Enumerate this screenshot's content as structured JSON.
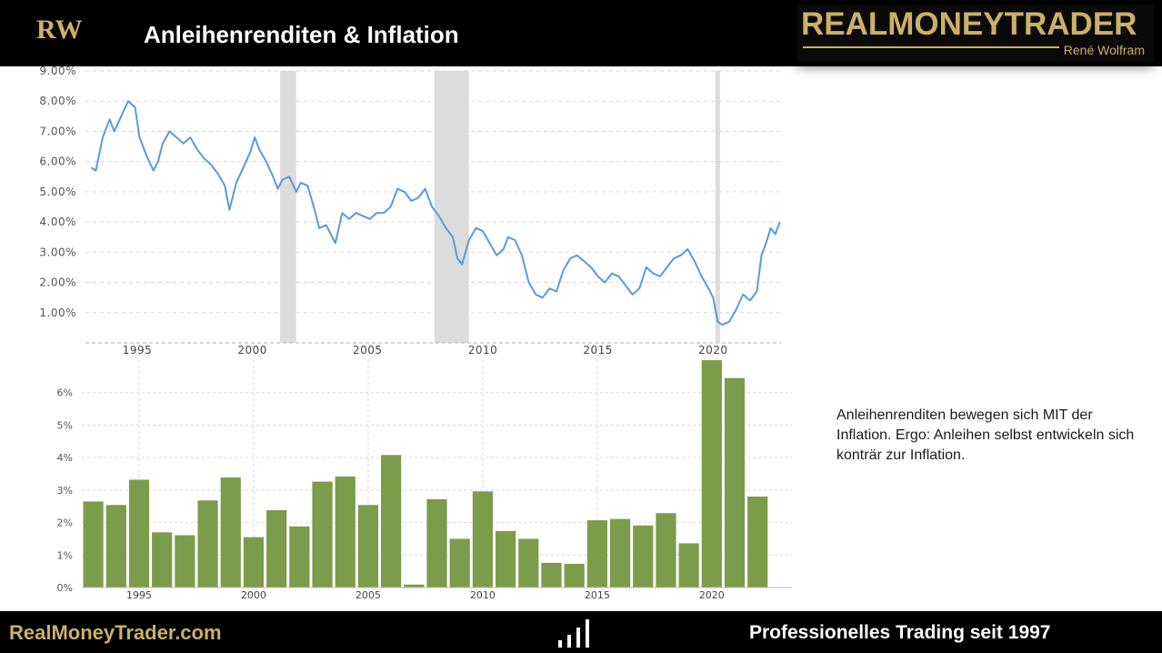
{
  "header": {
    "title": "Anleihenrenditen & Inflation",
    "logo_letters": "RW",
    "brand_name": "REALMONEYTRADER",
    "brand_sub": "René Wolfram",
    "colors": {
      "background": "#000000",
      "gold": "#cdb067",
      "title": "#ffffff"
    }
  },
  "note": {
    "text": "Anleihenrenditen bewegen sich MIT der Inflation. Ergo: Anleihen selbst entwickeln sich konträr zur Inflation."
  },
  "footer": {
    "site": "RealMoneyTrader.com",
    "tagline": "Professionelles Trading seit 1997",
    "icon": "bar-chart-icon"
  },
  "chart_data": [
    {
      "type": "line",
      "series_color": "#5b9bd5",
      "ylim": [
        0,
        9
      ],
      "xlim": [
        1993.0,
        2022.9
      ],
      "y_ticks": [
        "9.00%",
        "8.00%",
        "7.00%",
        "6.00%",
        "5.00%",
        "4.00%",
        "3.00%",
        "2.00%",
        "1.00%"
      ],
      "y_tick_values": [
        9,
        8,
        7,
        6,
        5,
        4,
        3,
        2,
        1
      ],
      "x_ticks": [
        "1995",
        "2000",
        "2005",
        "2010",
        "2015",
        "2020"
      ],
      "x_tick_values": [
        1995,
        2000,
        2005,
        2010,
        2015,
        2020
      ],
      "recession_bands": [
        [
          2001.2,
          2001.9
        ],
        [
          2007.9,
          2009.4
        ],
        [
          2020.1,
          2020.3
        ]
      ],
      "grid": true,
      "series": [
        {
          "x": [
            1993.0,
            1993.2,
            1993.5,
            1993.8,
            1994.0,
            1994.3,
            1994.6,
            1994.9,
            1995.1,
            1995.4,
            1995.7,
            1995.9,
            1996.1,
            1996.4,
            1996.7,
            1997.0,
            1997.3,
            1997.6,
            1997.9,
            1998.2,
            1998.5,
            1998.8,
            1999.0,
            1999.3,
            1999.6,
            1999.9,
            2000.1,
            2000.3,
            2000.6,
            2000.9,
            2001.1,
            2001.3,
            2001.6,
            2001.9,
            2002.1,
            2002.4,
            2002.7,
            2002.9,
            2003.2,
            2003.4,
            2003.6,
            2003.9,
            2004.2,
            2004.5,
            2004.8,
            2005.1,
            2005.4,
            2005.7,
            2006.0,
            2006.3,
            2006.6,
            2006.9,
            2007.2,
            2007.5,
            2007.8,
            2008.1,
            2008.4,
            2008.7,
            2008.9,
            2009.1,
            2009.4,
            2009.7,
            2010.0,
            2010.3,
            2010.6,
            2010.9,
            2011.1,
            2011.4,
            2011.7,
            2012.0,
            2012.3,
            2012.6,
            2012.9,
            2013.2,
            2013.5,
            2013.8,
            2014.1,
            2014.4,
            2014.7,
            2015.0,
            2015.3,
            2015.6,
            2015.9,
            2016.2,
            2016.5,
            2016.8,
            2017.1,
            2017.4,
            2017.7,
            2018.0,
            2018.3,
            2018.6,
            2018.9,
            2019.2,
            2019.5,
            2019.8,
            2020.0,
            2020.2,
            2020.4,
            2020.7,
            2021.0,
            2021.3,
            2021.6,
            2021.9,
            2022.1,
            2022.3,
            2022.5,
            2022.7,
            2022.9
          ],
          "y": [
            5.8,
            5.7,
            6.8,
            7.4,
            7.0,
            7.5,
            8.0,
            7.8,
            6.8,
            6.2,
            5.7,
            6.0,
            6.6,
            7.0,
            6.8,
            6.6,
            6.8,
            6.4,
            6.1,
            5.9,
            5.6,
            5.2,
            4.4,
            5.3,
            5.8,
            6.3,
            6.8,
            6.4,
            6.0,
            5.5,
            5.1,
            5.4,
            5.5,
            5.0,
            5.3,
            5.2,
            4.4,
            3.8,
            3.9,
            3.6,
            3.3,
            4.3,
            4.1,
            4.3,
            4.2,
            4.1,
            4.3,
            4.3,
            4.5,
            5.1,
            5.0,
            4.7,
            4.8,
            5.1,
            4.5,
            4.2,
            3.8,
            3.5,
            2.8,
            2.6,
            3.4,
            3.8,
            3.7,
            3.3,
            2.9,
            3.1,
            3.5,
            3.4,
            2.9,
            2.0,
            1.6,
            1.5,
            1.8,
            1.7,
            2.4,
            2.8,
            2.9,
            2.7,
            2.5,
            2.2,
            2.0,
            2.3,
            2.2,
            1.9,
            1.6,
            1.8,
            2.5,
            2.3,
            2.2,
            2.5,
            2.8,
            2.9,
            3.1,
            2.7,
            2.2,
            1.8,
            1.5,
            0.7,
            0.6,
            0.7,
            1.1,
            1.6,
            1.4,
            1.7,
            2.9,
            3.3,
            3.8,
            3.6,
            4.0
          ]
        }
      ]
    },
    {
      "type": "bar",
      "bar_color": "#7b9c4b",
      "ylim": [
        0,
        7
      ],
      "y_ticks": [
        "0%",
        "1%",
        "2%",
        "3%",
        "4%",
        "5%",
        "6%"
      ],
      "y_tick_values": [
        0,
        1,
        2,
        3,
        4,
        5,
        6
      ],
      "x_ticks": [
        "1995",
        "2000",
        "2005",
        "2010",
        "2015",
        "2020"
      ],
      "x_tick_values": [
        1995,
        2000,
        2005,
        2010,
        2015,
        2020
      ],
      "grid": true,
      "categories": [
        1993,
        1994,
        1995,
        1996,
        1997,
        1998,
        1999,
        2000,
        2001,
        2002,
        2003,
        2004,
        2005,
        2006,
        2007,
        2008,
        2009,
        2010,
        2011,
        2012,
        2013,
        2014,
        2015,
        2016,
        2017,
        2018,
        2019,
        2020,
        2021,
        2022,
        2023
      ],
      "values": [
        2.65,
        2.54,
        3.32,
        1.7,
        1.61,
        2.68,
        3.39,
        1.55,
        2.38,
        1.88,
        3.26,
        3.42,
        2.54,
        4.08,
        0.09,
        2.72,
        1.5,
        2.96,
        1.74,
        1.5,
        0.76,
        0.73,
        2.07,
        2.11,
        1.91,
        2.29,
        1.36,
        7.0,
        6.45,
        2.8,
        0
      ]
    }
  ]
}
